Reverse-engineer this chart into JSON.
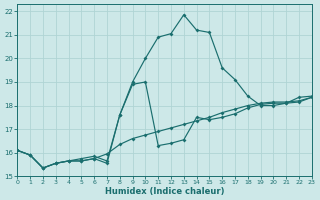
{
  "xlabel": "Humidex (Indice chaleur)",
  "bg_color": "#cde8e8",
  "line_color": "#1a6e6e",
  "grid_color": "#b0d4d4",
  "xlim": [
    0,
    23
  ],
  "ylim": [
    15,
    22.3
  ],
  "yticks": [
    15,
    16,
    17,
    18,
    19,
    20,
    21,
    22
  ],
  "xticks": [
    0,
    1,
    2,
    3,
    4,
    5,
    6,
    7,
    8,
    9,
    10,
    11,
    12,
    13,
    14,
    15,
    16,
    17,
    18,
    19,
    20,
    21,
    22,
    23
  ],
  "line1_x": [
    0,
    1,
    2,
    3,
    4,
    5,
    6,
    7,
    8,
    9,
    10,
    11,
    12,
    13,
    14,
    15,
    16,
    17,
    18,
    19,
    20,
    21,
    22,
    23
  ],
  "line1_y": [
    16.1,
    15.9,
    15.35,
    15.55,
    15.65,
    15.65,
    15.75,
    15.95,
    16.35,
    16.6,
    16.75,
    16.9,
    17.05,
    17.2,
    17.35,
    17.5,
    17.7,
    17.85,
    18.0,
    18.1,
    18.15,
    18.15,
    18.2,
    18.35
  ],
  "line2_x": [
    0,
    1,
    2,
    3,
    4,
    5,
    6,
    7,
    8,
    9,
    10,
    11,
    12,
    13,
    14,
    15,
    16,
    17,
    18,
    19,
    20,
    21,
    22,
    23
  ],
  "line2_y": [
    16.1,
    15.9,
    15.35,
    15.55,
    15.65,
    15.65,
    15.75,
    15.55,
    17.6,
    18.9,
    19.0,
    16.3,
    16.4,
    16.55,
    17.5,
    17.4,
    17.5,
    17.65,
    17.9,
    18.05,
    18.1,
    18.1,
    18.15,
    18.35
  ],
  "line3_x": [
    0,
    1,
    2,
    3,
    4,
    5,
    6,
    7,
    8,
    9,
    10,
    11,
    12,
    13,
    14,
    15,
    16,
    17,
    18,
    19,
    20,
    21,
    22,
    23
  ],
  "line3_y": [
    16.1,
    15.9,
    15.35,
    15.55,
    15.65,
    15.75,
    15.85,
    15.65,
    17.6,
    19.0,
    20.0,
    20.9,
    21.05,
    21.85,
    21.2,
    21.1,
    19.6,
    19.1,
    18.4,
    18.0,
    18.0,
    18.1,
    18.35,
    18.4
  ]
}
